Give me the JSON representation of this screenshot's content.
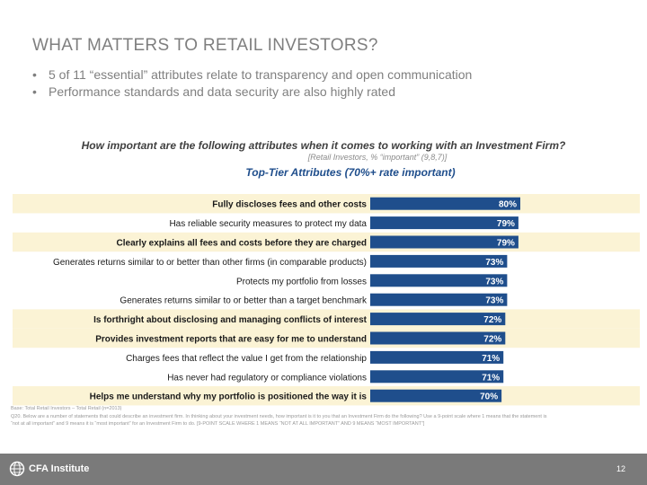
{
  "slide": {
    "title": "WHAT MATTERS TO RETAIL INVESTORS?",
    "bullets": [
      "5 of 11 “essential” attributes relate to transparency and open communication",
      "Performance standards and data security are also highly rated"
    ],
    "bullet_symbol": "•",
    "footnote_base": "Base:     Total Retail Investors – Total Retail (n=2013)",
    "footnote_q": "Q20.      Below are a number of statements that could describe an investment firm. In thinking about your investment needs, how important is it to you that an Investment Firm do the following? Use a 9-point scale where 1 means that the statement is",
    "footnote_q2": "            “not at all important” and 9 means it is “most important” for an Investment Firm to do. [9-POINT SCALE WHERE 1 MEANS “NOT AT ALL IMPORTANT” AND 9 MEANS “MOST IMPORTANT”]",
    "brand": "CFA Institute",
    "page_number": "12"
  },
  "chart_data": {
    "type": "bar",
    "orientation": "horizontal",
    "question": "How important are the following attributes when it comes to working with an Investment Firm?",
    "base_note": "[Retail Investors, % “important” (9,8,7)]",
    "subtitle": "Top-Tier Attributes (70%+ rate important)",
    "categories": [
      "Fully discloses fees and other costs",
      "Has reliable security measures to protect my data",
      "Clearly explains all fees and costs before they are charged",
      "Generates returns similar to or better than other firms (in comparable products)",
      "Protects my portfolio from losses",
      "Generates returns similar to or better than a target benchmark",
      "Is forthright about disclosing and managing conflicts of interest",
      "Provides investment reports that are easy for me to understand",
      "Charges fees that reflect the value I get from the relationship",
      "Has never had regulatory or compliance violations",
      "Helps me understand why my portfolio is positioned the way it is"
    ],
    "values": [
      80,
      79,
      79,
      73,
      73,
      73,
      72,
      72,
      71,
      71,
      70
    ],
    "value_labels": [
      "80%",
      "79%",
      "79%",
      "73%",
      "73%",
      "73%",
      "72%",
      "72%",
      "71%",
      "71%",
      "70%"
    ],
    "highlighted": [
      true,
      false,
      true,
      false,
      false,
      false,
      true,
      true,
      false,
      false,
      true
    ],
    "xlim": [
      0,
      100
    ],
    "colors": {
      "bar": "#1f4e8c",
      "highlight_row": "#fbf3d5",
      "label_text": "#ffffff",
      "category_text": "#1a1a1a"
    }
  }
}
